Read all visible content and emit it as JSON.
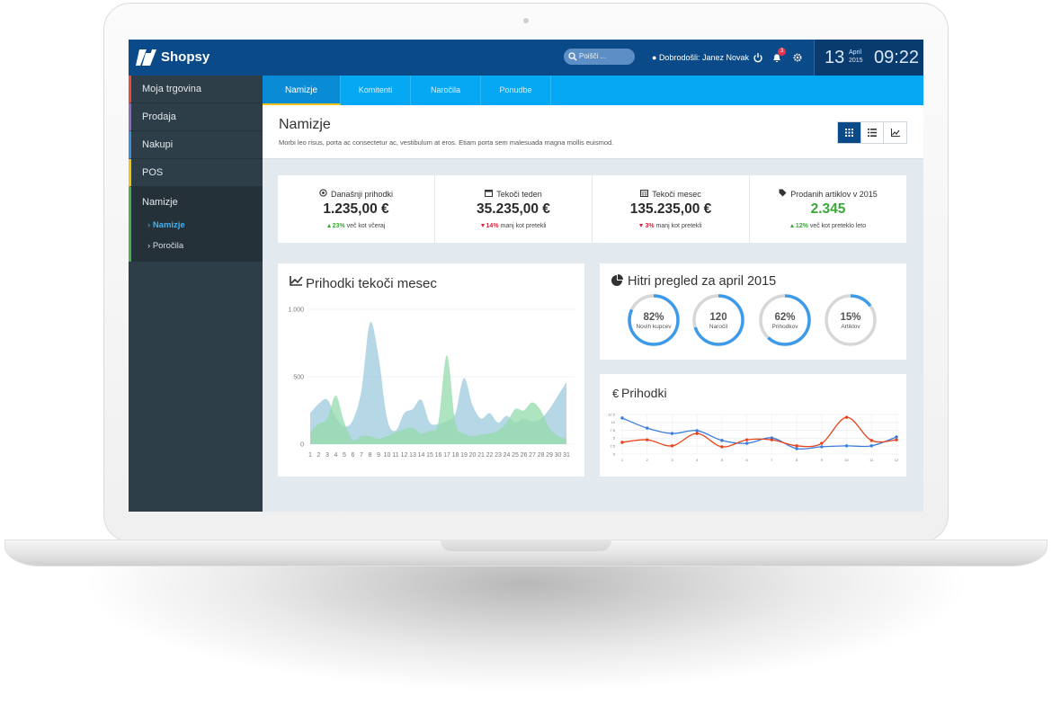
{
  "header": {
    "brand": "Shopsy",
    "search_placeholder": "Poišči ...",
    "welcome": "Dobrodošli:",
    "user": "Janez Novak",
    "notifications": "3",
    "day": "13",
    "month": "April",
    "year": "2015",
    "time": "09:22"
  },
  "sidebar": {
    "items": [
      {
        "label": "Moja trgovina",
        "color": "#e84c3d"
      },
      {
        "label": "Prodaja",
        "color": "#8e6bbf"
      },
      {
        "label": "Nakupi",
        "color": "#3d8fd8"
      },
      {
        "label": "POS",
        "color": "#f1c40f"
      },
      {
        "label": "Namizje",
        "color": "#4cae4c",
        "active": true,
        "children": [
          {
            "label": "Namizje",
            "active": true
          },
          {
            "label": "Poročila"
          }
        ]
      }
    ]
  },
  "tabs": [
    {
      "label": "Namizje",
      "active": true
    },
    {
      "label": "Komitenti"
    },
    {
      "label": "Naročila"
    },
    {
      "label": "Ponudbe"
    }
  ],
  "page": {
    "title": "Namizje",
    "subtitle": "Morbi leo risus, porta ac consectetur ac, vestibulum at eros. Etiam porta sem malesuada magna mollis euismod."
  },
  "stats": [
    {
      "label": "Današnji prihodki",
      "value": "1.235,00 €",
      "change": "23%",
      "note": "več kot včeraj",
      "trend": "up"
    },
    {
      "label": "Tekoči teden",
      "value": "35.235,00 €",
      "change": "14%",
      "note": "manj kot pretekli",
      "trend": "down"
    },
    {
      "label": "Tekoči mesec",
      "value": "135.235,00 €",
      "change": "3%",
      "note": "manj kot pretekli",
      "trend": "down"
    },
    {
      "label": "Prodanih artiklov v 2015",
      "value": "2.345",
      "change": "12%",
      "note": "več kot preteklo leto",
      "trend": "up",
      "highlight": "#3aa935"
    }
  ],
  "chart_data": [
    {
      "type": "area",
      "title": "Prihodki tekoči mesec",
      "categories": [
        1,
        2,
        3,
        4,
        5,
        6,
        7,
        8,
        9,
        10,
        11,
        12,
        13,
        14,
        15,
        16,
        17,
        18,
        19,
        20,
        21,
        22,
        23,
        24,
        25,
        26,
        27,
        28,
        29,
        30,
        31
      ],
      "series": [
        {
          "name": null,
          "color": "#9ec9dd",
          "values": [
            230,
            300,
            330,
            200,
            130,
            180,
            400,
            900,
            650,
            190,
            100,
            230,
            260,
            330,
            160,
            150,
            170,
            230,
            490,
            290,
            190,
            230,
            160,
            210,
            160,
            190,
            170,
            190,
            260,
            360,
            460
          ]
        },
        {
          "name": null,
          "color": "#93dbab",
          "values": [
            90,
            150,
            190,
            360,
            160,
            30,
            60,
            60,
            40,
            60,
            90,
            110,
            120,
            80,
            100,
            160,
            660,
            160,
            80,
            60,
            70,
            80,
            100,
            160,
            260,
            250,
            310,
            250,
            120,
            60,
            40
          ]
        }
      ],
      "ylim": [
        0,
        1000
      ],
      "yticks": [
        0,
        500,
        {
          "value": 1000,
          "label": "1.000"
        }
      ],
      "grid": true
    },
    {
      "type": "line",
      "title": "Prihodki",
      "categories": [
        1,
        2,
        3,
        4,
        5,
        6,
        7,
        8,
        9,
        10,
        11,
        12
      ],
      "series": [
        {
          "name": null,
          "color": "#3b7ddd",
          "values": [
            11.4,
            8.2,
            6.5,
            7.4,
            4.3,
            3.4,
            5.1,
            1.7,
            2.3,
            2.6,
            2.6,
            5.4
          ]
        },
        {
          "name": null,
          "color": "#e8431d",
          "values": [
            3.7,
            4.5,
            2.6,
            6.5,
            2.3,
            4.5,
            4.5,
            2.6,
            3.4,
            11.6,
            4.3,
            4.5
          ]
        }
      ],
      "ylim": [
        0,
        12.5
      ],
      "yticks": [
        0,
        2.5,
        5,
        7.5,
        10,
        12.5
      ],
      "grid": true
    }
  ],
  "quick_view": {
    "title": "Hitri pregled za april 2015",
    "color": "#3d9be9",
    "items": [
      {
        "label": "82%",
        "name": "Novih kupcev",
        "fill": 82
      },
      {
        "label": "120",
        "name": "Naročil",
        "fill": 70
      },
      {
        "label": "62%",
        "name": "Prihodkov",
        "fill": 62
      },
      {
        "label": "15%",
        "name": "Artiklov",
        "fill": 15
      }
    ]
  }
}
